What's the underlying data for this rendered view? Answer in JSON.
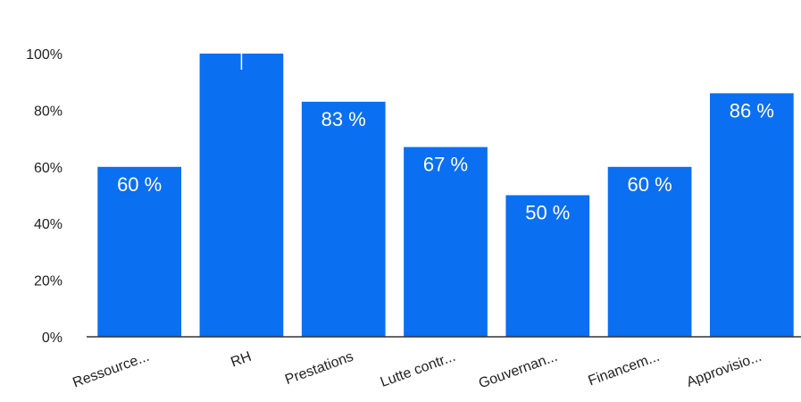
{
  "chart_data": {
    "type": "bar",
    "categories": [
      "Ressource...",
      "RH",
      "Prestations",
      "Lutte contr...",
      "Gouvernan...",
      "Financem...",
      "Approvisio..."
    ],
    "values": [
      60,
      100,
      83,
      67,
      50,
      60,
      86
    ],
    "data_labels": [
      "60 %",
      "",
      "83 %",
      "67 %",
      "50 %",
      "60 %",
      "86 %"
    ],
    "ylim": [
      0,
      100
    ],
    "yticks": [
      0,
      20,
      40,
      60,
      80,
      100
    ],
    "ytick_labels": [
      "0%",
      "20%",
      "40%",
      "60%",
      "80%",
      "100%"
    ],
    "title": "",
    "xlabel": "",
    "ylabel": "",
    "grid": false,
    "bar_color": "#0a6ff0"
  }
}
